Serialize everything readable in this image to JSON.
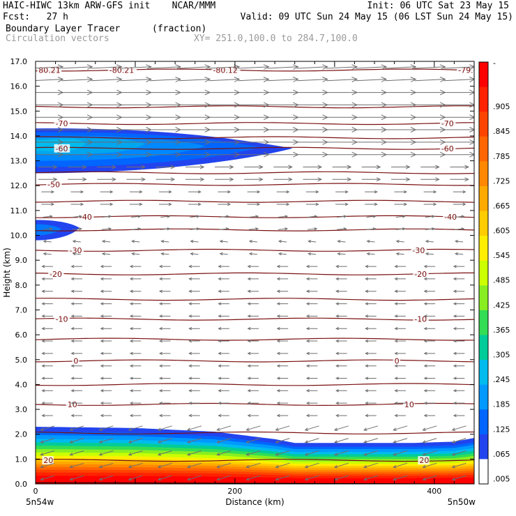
{
  "header": {
    "line1_left": "HAIC-HIWC 13km ARW-GFS init    NCAR/MMM",
    "line1_right": "Init: 06 UTC Sat 23 May 15",
    "line2_left": "Fcst:   27 h",
    "line2_right": "Valid: 09 UTC Sun 24 May 15 (06 LST Sun 24 May 15)",
    "line3_left": "Boundary Layer Tracer",
    "line3_mid": "(fraction)",
    "line4_left": "Circulation vectors",
    "line4_mid": "XY= 251.0,100.0 to 284.7,100.0"
  },
  "chart_data": {
    "type": "heatmap",
    "xlabel": "Distance (km)",
    "ylabel": "Height (km)",
    "xlim": [
      0,
      440
    ],
    "ylim": [
      0,
      17
    ],
    "xticks": [
      {
        "value": 0,
        "label": "0"
      },
      {
        "value": 200,
        "label": "200"
      },
      {
        "value": 400,
        "label": "400"
      }
    ],
    "yticks": [
      {
        "value": 0,
        "label": "0.0"
      },
      {
        "value": 1,
        "label": "1.0"
      },
      {
        "value": 2,
        "label": "2.0"
      },
      {
        "value": 3,
        "label": "3.0"
      },
      {
        "value": 4,
        "label": "4.0"
      },
      {
        "value": 5,
        "label": "5.0"
      },
      {
        "value": 6,
        "label": "6.0"
      },
      {
        "value": 7,
        "label": "7.0"
      },
      {
        "value": 8,
        "label": "8.0"
      },
      {
        "value": 9,
        "label": "9.0"
      },
      {
        "value": 10,
        "label": "10.0"
      },
      {
        "value": 11,
        "label": "11.0"
      },
      {
        "value": 12,
        "label": "12.0"
      },
      {
        "value": 13,
        "label": "13.0"
      },
      {
        "value": 14,
        "label": "14.0"
      },
      {
        "value": 15,
        "label": "15.0"
      },
      {
        "value": 16,
        "label": "16.0"
      },
      {
        "value": 17,
        "label": "17.0"
      }
    ],
    "x_endpoints": {
      "left": "5n54w",
      "right": "5n50w"
    },
    "colorbar": {
      "labels": [
        ".905",
        ".845",
        ".785",
        ".725",
        ".665",
        ".605",
        ".545",
        ".485",
        ".425",
        ".365",
        ".305",
        ".245",
        ".185",
        ".125",
        ".065",
        ".005"
      ],
      "top_label": "-",
      "colors": [
        "#ff0000",
        "#ff2200",
        "#ff4400",
        "#ff6600",
        "#ff8800",
        "#ffaa00",
        "#ffcc00",
        "#ffee00",
        "#ccff00",
        "#88ee22",
        "#33dd55",
        "#00cc99",
        "#00bbee",
        "#0099ff",
        "#0066ff",
        "#2244ee",
        "#ffffff"
      ]
    },
    "temperature_isotherms": [
      {
        "y": 16.65,
        "labels": [
          {
            "x": 3,
            "text": "80.21"
          },
          {
            "x": 74,
            "text": "-80.21"
          },
          {
            "x": 178,
            "text": "-80.12"
          },
          {
            "x": 424,
            "text": "-79.33"
          }
        ]
      },
      {
        "y": 15.17,
        "labels": []
      },
      {
        "y": 14.5,
        "labels": [
          {
            "x": 20,
            "text": "-70"
          },
          {
            "x": 407,
            "text": "-70"
          }
        ]
      },
      {
        "y": 13.93,
        "labels": []
      },
      {
        "y": 13.5,
        "labels": [
          {
            "x": 20,
            "text": "-60"
          },
          {
            "x": 407,
            "text": "-60"
          }
        ]
      },
      {
        "y": 12.52,
        "labels": []
      },
      {
        "y": 12.05,
        "labels": [
          {
            "x": 12,
            "text": "-50"
          }
        ]
      },
      {
        "y": 11.37,
        "labels": []
      },
      {
        "y": 10.75,
        "labels": [
          {
            "x": 44,
            "text": "-40"
          },
          {
            "x": 410,
            "text": "-40"
          }
        ]
      },
      {
        "y": 10.22,
        "labels": []
      },
      {
        "y": 9.4,
        "labels": [
          {
            "x": 34,
            "text": "-30"
          },
          {
            "x": 378,
            "text": "-30"
          }
        ]
      },
      {
        "y": 8.45,
        "labels": [
          {
            "x": 14,
            "text": "-20"
          },
          {
            "x": 380,
            "text": "-20"
          }
        ]
      },
      {
        "y": 7.43,
        "labels": []
      },
      {
        "y": 6.63,
        "labels": [
          {
            "x": 20,
            "text": "-10"
          },
          {
            "x": 380,
            "text": "-10"
          }
        ]
      },
      {
        "y": 5.82,
        "labels": []
      },
      {
        "y": 4.95,
        "labels": [
          {
            "x": 38,
            "text": "0"
          },
          {
            "x": 360,
            "text": "0"
          }
        ]
      },
      {
        "y": 4.0,
        "labels": []
      },
      {
        "y": 3.2,
        "labels": [
          {
            "x": 32,
            "text": "10"
          },
          {
            "x": 370,
            "text": "10"
          }
        ]
      },
      {
        "y": 2.05,
        "labels": []
      },
      {
        "y": 0.95,
        "labels": [
          {
            "x": 8,
            "text": "20"
          },
          {
            "x": 385,
            "text": "20"
          }
        ]
      }
    ],
    "tracer_regions": [
      {
        "name": "upper-plume",
        "top_km": 14.3,
        "bottom_km": 12.5,
        "x_start": 0,
        "x_end": 258,
        "max_fraction": 0.125
      },
      {
        "name": "mid-blob",
        "top_km": 10.6,
        "bottom_km": 9.8,
        "x_start": 0,
        "x_end": 44,
        "max_fraction": 0.065
      },
      {
        "name": "boundary-layer",
        "top_km_profile": [
          [
            0,
            2.3
          ],
          [
            100,
            2.25
          ],
          [
            180,
            2.1
          ],
          [
            240,
            1.8
          ],
          [
            260,
            1.65
          ],
          [
            380,
            1.65
          ],
          [
            420,
            1.7
          ],
          [
            440,
            1.85
          ]
        ],
        "max_fraction": 0.95
      }
    ],
    "wind_vectors": [
      {
        "y_min": 16.0,
        "y_max": 17.0,
        "u": 1.0,
        "w": 0.05,
        "length": 1.0
      },
      {
        "y_min": 13.0,
        "y_max": 16.0,
        "u": 1.0,
        "w": 0.0,
        "length": 1.0
      },
      {
        "y_min": 12.0,
        "y_max": 13.0,
        "u": 1.0,
        "w": 0.0,
        "length": 0.6
      },
      {
        "y_min": 11.0,
        "y_max": 12.0,
        "u": 1.0,
        "w": 0.0,
        "length": 0.4
      },
      {
        "y_min": 10.0,
        "y_max": 11.0,
        "u": 1.0,
        "w": 0.1,
        "length": 0.3
      },
      {
        "y_min": 9.0,
        "y_max": 10.0,
        "u": -1.0,
        "w": 0.1,
        "length": 0.25
      },
      {
        "y_min": 2.5,
        "y_max": 9.0,
        "u": -1.0,
        "w": 0.0,
        "length": 0.35
      },
      {
        "y_min": 0.0,
        "y_max": 2.5,
        "u": -1.0,
        "w": -0.3,
        "length": 0.45
      }
    ]
  }
}
